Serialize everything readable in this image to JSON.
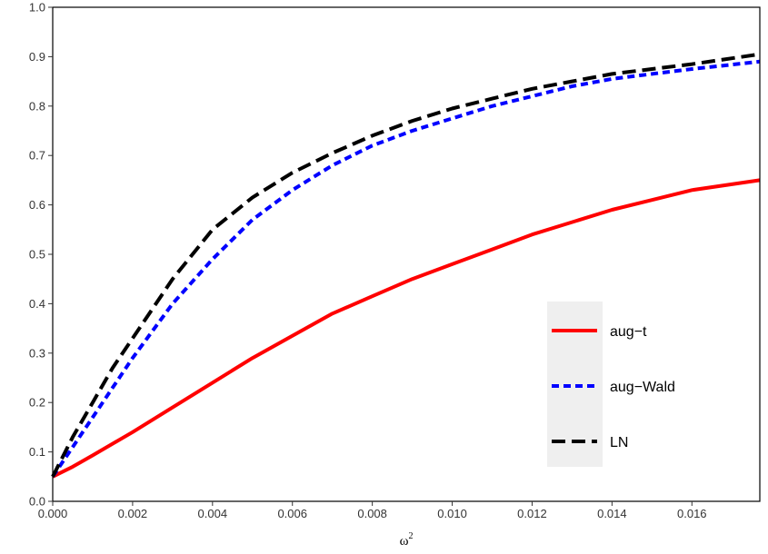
{
  "chart_data": {
    "type": "line",
    "xlabel": "ω",
    "xlabel_superscript": "2",
    "ylabel": "",
    "title": "",
    "xlim": [
      0,
      0.0177
    ],
    "ylim": [
      0,
      1
    ],
    "x_ticks": [
      "0.000",
      "0.002",
      "0.004",
      "0.006",
      "0.008",
      "0.010",
      "0.012",
      "0.014",
      "0.016"
    ],
    "y_ticks": [
      "0.0",
      "0.1",
      "0.2",
      "0.3",
      "0.4",
      "0.5",
      "0.6",
      "0.7",
      "0.8",
      "0.9",
      "1.0"
    ],
    "grid": false,
    "legend_position": "bottom-right",
    "series": [
      {
        "name": "aug−t",
        "color": "#ff0000",
        "dash": "solid",
        "x": [
          0,
          0.0005,
          0.001,
          0.002,
          0.003,
          0.004,
          0.005,
          0.006,
          0.007,
          0.008,
          0.009,
          0.01,
          0.011,
          0.012,
          0.013,
          0.014,
          0.015,
          0.016,
          0.0177
        ],
        "values": [
          0.05,
          0.07,
          0.093,
          0.14,
          0.19,
          0.24,
          0.29,
          0.335,
          0.38,
          0.415,
          0.45,
          0.48,
          0.51,
          0.54,
          0.565,
          0.59,
          0.61,
          0.63,
          0.65
        ]
      },
      {
        "name": "aug−Wald",
        "color": "#0000ff",
        "dash": "dotted",
        "x": [
          0,
          0.0005,
          0.001,
          0.0015,
          0.002,
          0.003,
          0.004,
          0.005,
          0.006,
          0.007,
          0.008,
          0.009,
          0.01,
          0.011,
          0.012,
          0.013,
          0.014,
          0.015,
          0.016,
          0.0177
        ],
        "values": [
          0.05,
          0.11,
          0.17,
          0.23,
          0.29,
          0.4,
          0.49,
          0.57,
          0.63,
          0.68,
          0.72,
          0.75,
          0.775,
          0.8,
          0.82,
          0.84,
          0.855,
          0.865,
          0.875,
          0.89
        ]
      },
      {
        "name": "LN",
        "color": "#000000",
        "dash": "dashed",
        "x": [
          0,
          0.0005,
          0.001,
          0.0015,
          0.002,
          0.003,
          0.004,
          0.005,
          0.006,
          0.007,
          0.008,
          0.009,
          0.01,
          0.011,
          0.012,
          0.013,
          0.014,
          0.015,
          0.016,
          0.0177
        ],
        "values": [
          0.05,
          0.13,
          0.2,
          0.27,
          0.33,
          0.45,
          0.55,
          0.615,
          0.665,
          0.705,
          0.74,
          0.77,
          0.795,
          0.815,
          0.835,
          0.85,
          0.865,
          0.875,
          0.885,
          0.905
        ]
      }
    ]
  }
}
